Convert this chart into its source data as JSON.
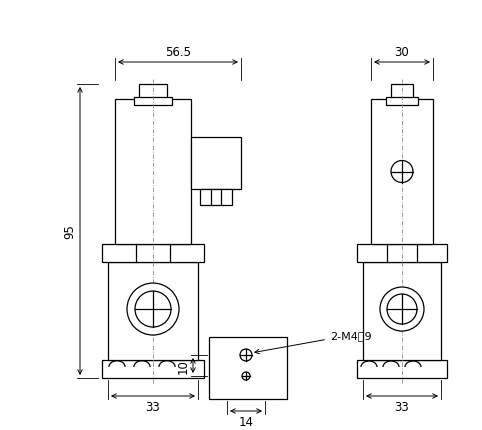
{
  "bg_color": "#ffffff",
  "line_color": "#000000",
  "centerline_color": "#888888",
  "dim_color": "#000000",
  "font_size_dim": 8.5,
  "font_size_annot": 8,
  "dim_56_5": "56.5",
  "dim_95": "95",
  "dim_33_left": "33",
  "dim_33_right": "33",
  "dim_30": "30",
  "dim_10": "10",
  "dim_14": "14",
  "annot_m4": "2-M4淸9"
}
